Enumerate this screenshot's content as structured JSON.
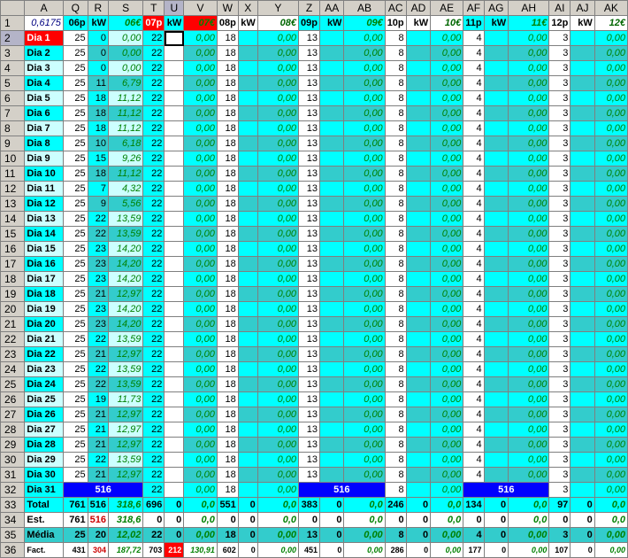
{
  "columns": [
    "",
    "A",
    "Q",
    "R",
    "S",
    "T",
    "U",
    "V",
    "W",
    "X",
    "Y",
    "Z",
    "AA",
    "AB",
    "AC",
    "AD",
    "AE",
    "AF",
    "AG",
    "AH",
    "AI",
    "AJ",
    "AK"
  ],
  "row1": [
    "0,6175",
    "06p",
    "kW",
    "06€",
    "07p",
    "kW",
    "07€",
    "08p",
    "kW",
    "08€",
    "09p",
    "kW",
    "09€",
    "10p",
    "kW",
    "10€",
    "11p",
    "kW",
    "11€",
    "12p",
    "kW",
    "12€"
  ],
  "days": [
    {
      "n": "2",
      "l": "Dia 1",
      "q": "25",
      "r": "0",
      "s": "0,00",
      "t": "22"
    },
    {
      "n": "3",
      "l": "Dia 2",
      "q": "25",
      "r": "0",
      "s": "0,00",
      "t": "22"
    },
    {
      "n": "4",
      "l": "Dia 3",
      "q": "25",
      "r": "0",
      "s": "0,00",
      "t": "22"
    },
    {
      "n": "5",
      "l": "Dia 4",
      "q": "25",
      "r": "11",
      "s": "6,79",
      "t": "22"
    },
    {
      "n": "6",
      "l": "Dia 5",
      "q": "25",
      "r": "18",
      "s": "11,12",
      "t": "22"
    },
    {
      "n": "7",
      "l": "Dia 6",
      "q": "25",
      "r": "18",
      "s": "11,12",
      "t": "22"
    },
    {
      "n": "8",
      "l": "Dia 7",
      "q": "25",
      "r": "18",
      "s": "11,12",
      "t": "22"
    },
    {
      "n": "9",
      "l": "Dia 8",
      "q": "25",
      "r": "10",
      "s": "6,18",
      "t": "22"
    },
    {
      "n": "10",
      "l": "Dia 9",
      "q": "25",
      "r": "15",
      "s": "9,26",
      "t": "22"
    },
    {
      "n": "11",
      "l": "Dia 10",
      "q": "25",
      "r": "18",
      "s": "11,12",
      "t": "22"
    },
    {
      "n": "12",
      "l": "Dia 11",
      "q": "25",
      "r": "7",
      "s": "4,32",
      "t": "22"
    },
    {
      "n": "13",
      "l": "Dia 12",
      "q": "25",
      "r": "9",
      "s": "5,56",
      "t": "22"
    },
    {
      "n": "14",
      "l": "Dia 13",
      "q": "25",
      "r": "22",
      "s": "13,59",
      "t": "22"
    },
    {
      "n": "15",
      "l": "Dia 14",
      "q": "25",
      "r": "22",
      "s": "13,59",
      "t": "22"
    },
    {
      "n": "16",
      "l": "Dia 15",
      "q": "25",
      "r": "23",
      "s": "14,20",
      "t": "22"
    },
    {
      "n": "17",
      "l": "Dia 16",
      "q": "25",
      "r": "23",
      "s": "14,20",
      "t": "22"
    },
    {
      "n": "18",
      "l": "Dia 17",
      "q": "25",
      "r": "23",
      "s": "14,20",
      "t": "22"
    },
    {
      "n": "19",
      "l": "Dia 18",
      "q": "25",
      "r": "21",
      "s": "12,97",
      "t": "22"
    },
    {
      "n": "20",
      "l": "Dia 19",
      "q": "25",
      "r": "23",
      "s": "14,20",
      "t": "22"
    },
    {
      "n": "21",
      "l": "Dia 20",
      "q": "25",
      "r": "23",
      "s": "14,20",
      "t": "22"
    },
    {
      "n": "22",
      "l": "Dia 21",
      "q": "25",
      "r": "22",
      "s": "13,59",
      "t": "22"
    },
    {
      "n": "23",
      "l": "Dia 22",
      "q": "25",
      "r": "21",
      "s": "12,97",
      "t": "22"
    },
    {
      "n": "24",
      "l": "Dia 23",
      "q": "25",
      "r": "22",
      "s": "13,59",
      "t": "22"
    },
    {
      "n": "25",
      "l": "Dia 24",
      "q": "25",
      "r": "22",
      "s": "13,59",
      "t": "22"
    },
    {
      "n": "26",
      "l": "Dia 25",
      "q": "25",
      "r": "19",
      "s": "11,73",
      "t": "22"
    },
    {
      "n": "27",
      "l": "Dia 26",
      "q": "25",
      "r": "21",
      "s": "12,97",
      "t": "22"
    },
    {
      "n": "28",
      "l": "Dia 27",
      "q": "25",
      "r": "21",
      "s": "12,97",
      "t": "22"
    },
    {
      "n": "29",
      "l": "Dia 28",
      "q": "25",
      "r": "21",
      "s": "12,97",
      "t": "22"
    },
    {
      "n": "30",
      "l": "Dia 29",
      "q": "25",
      "r": "22",
      "s": "13,59",
      "t": "22"
    },
    {
      "n": "31",
      "l": "Dia 30",
      "q": "25",
      "r": "21",
      "s": "12,97",
      "t": "22"
    }
  ],
  "rest": {
    "w": "18",
    "z": "13",
    "ac": "8",
    "af": "4",
    "ai": "3",
    "zero": "0,00"
  },
  "row32": {
    "n": "32",
    "label": "Dia 31",
    "merged": "516",
    "t": "22",
    "v": "0,00",
    "w": "18",
    "y": "0,00",
    "merged2": "516",
    "ac": "8",
    "ae": "0,00",
    "merged3": "516",
    "ai": "3",
    "ak": "0,00"
  },
  "summary": [
    {
      "n": "33",
      "label": "Total",
      "cells": [
        "761",
        "516",
        "318,6",
        "696",
        "0",
        "0,0",
        "551",
        "0",
        "0,0",
        "383",
        "0",
        "0,0",
        "246",
        "0",
        "0,0",
        "134",
        "0",
        "0,0",
        "97",
        "0",
        "0,0"
      ]
    },
    {
      "n": "34",
      "label": "Est.",
      "cells": [
        "761",
        "516",
        "318,6",
        "0",
        "0",
        "0,0",
        "0",
        "0",
        "0,0",
        "0",
        "0",
        "0,0",
        "0",
        "0",
        "0,0",
        "0",
        "0",
        "0,0",
        "0",
        "0",
        "0,0"
      ]
    },
    {
      "n": "35",
      "label": "Média",
      "cells": [
        "25",
        "20",
        "12,02",
        "22",
        "0",
        "0,00",
        "18",
        "0",
        "0,00",
        "13",
        "0",
        "0,00",
        "8",
        "0",
        "0,00",
        "4",
        "0",
        "0,00",
        "3",
        "0",
        "0,00"
      ]
    },
    {
      "n": "36",
      "label": "Fact.",
      "cells": [
        "431",
        "304",
        "187,72",
        "703",
        "212",
        "130,91",
        "602",
        "0",
        "0,00",
        "451",
        "0",
        "0,00",
        "286",
        "0",
        "0,00",
        "177",
        "0",
        "0,00",
        "107",
        "0",
        "0,00"
      ]
    }
  ]
}
